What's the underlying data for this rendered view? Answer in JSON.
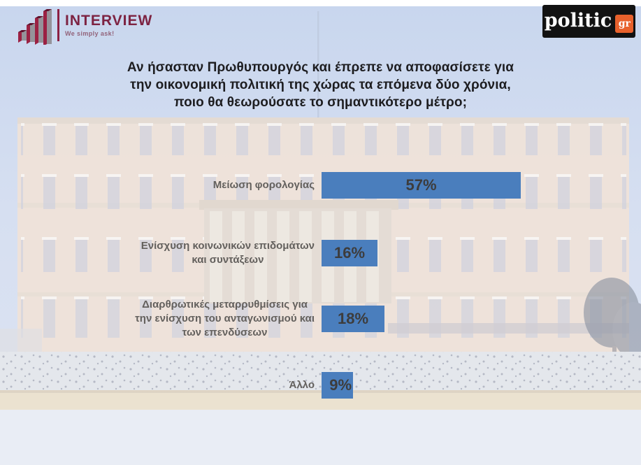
{
  "brand": {
    "interview": {
      "name": "INTERVIEW",
      "tagline": "We simply ask!"
    },
    "politic": {
      "name": "politic",
      "suffix": "gr"
    }
  },
  "colors": {
    "bar_blue": "#4a7ebd",
    "interview_maroon": "#8c2043",
    "politic_black": "#121212",
    "politic_orange": "#e8612c",
    "title_text": "#1d1d20",
    "label_text": "#63605d",
    "value_text": "#3d3c3c"
  },
  "chart_data": {
    "type": "bar",
    "orientation": "horizontal",
    "title": "Αν ήσασταν Πρωθυπουργός και έπρεπε να αποφασίσετε για\nτην οικονομική πολιτική της χώρας τα επόμενα δύο χρόνια,\nποιο θα θεωρούσατε το σημαντικότερο μέτρο;",
    "categories": [
      "Μείωση φορολογίας",
      "Ενίσχυση κοινωνικών επιδομάτων\nκαι συντάξεων",
      "Διαρθρωτικές μεταρρυθμίσεις για\nτην ενίσχυση του ανταγωνισμού και\nτων επενδύσεων",
      "Άλλο"
    ],
    "values": [
      57,
      16,
      18,
      9
    ],
    "value_labels": [
      "57%",
      "16%",
      "18%",
      "9%"
    ],
    "unit": "%",
    "xlim": [
      0,
      60
    ],
    "grid": false,
    "legend": false,
    "data_labels_position": "inside-center",
    "background_subject": "faded photo of the Hellenic Parliament building, Athens"
  }
}
